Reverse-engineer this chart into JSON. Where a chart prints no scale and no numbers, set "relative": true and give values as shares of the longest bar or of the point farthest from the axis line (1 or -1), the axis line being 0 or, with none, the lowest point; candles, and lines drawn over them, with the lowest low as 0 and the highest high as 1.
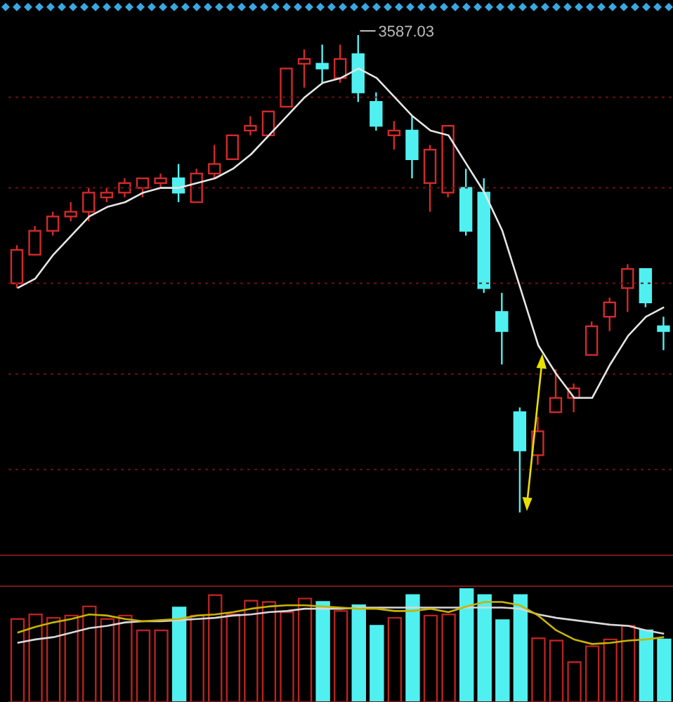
{
  "chart_data": [
    {
      "type": "candlestick",
      "relative": true,
      "ref_lines": [
        {
          "axis": "y",
          "value": 0.87,
          "color": "#6a1212",
          "line_style": "dashed"
        },
        {
          "axis": "y",
          "value": 0.68,
          "color": "#6a1212",
          "line_style": "dashed"
        },
        {
          "axis": "y",
          "value": 0.48,
          "color": "#6a1212",
          "line_style": "dashed"
        },
        {
          "axis": "y",
          "value": 0.29,
          "color": "#6a1212",
          "line_style": "dashed"
        },
        {
          "axis": "y",
          "value": 0.09,
          "color": "#6a1212",
          "line_style": "dashed"
        }
      ],
      "categories": [
        null,
        null,
        null,
        null,
        null,
        null,
        null,
        null,
        null,
        null,
        null,
        null,
        null,
        null,
        null,
        null,
        null,
        null,
        null,
        null,
        null,
        null,
        null,
        null,
        null,
        null,
        null,
        null,
        null,
        null,
        null,
        null,
        null,
        null,
        null,
        null,
        null
      ],
      "ohlc": [
        [
          0.48,
          0.56,
          0.47,
          0.55
        ],
        [
          0.54,
          0.6,
          0.54,
          0.59
        ],
        [
          0.59,
          0.63,
          0.58,
          0.62
        ],
        [
          0.62,
          0.65,
          0.61,
          0.63
        ],
        [
          0.63,
          0.68,
          0.61,
          0.67
        ],
        [
          0.66,
          0.68,
          0.65,
          0.67
        ],
        [
          0.67,
          0.7,
          0.66,
          0.69
        ],
        [
          0.68,
          0.7,
          0.66,
          0.7
        ],
        [
          0.69,
          0.71,
          0.68,
          0.7
        ],
        [
          0.7,
          0.73,
          0.65,
          0.67
        ],
        [
          0.65,
          0.72,
          0.65,
          0.71
        ],
        [
          0.71,
          0.77,
          0.7,
          0.73
        ],
        [
          0.74,
          0.79,
          0.74,
          0.79
        ],
        [
          0.8,
          0.83,
          0.79,
          0.81
        ],
        [
          0.79,
          0.84,
          0.79,
          0.84
        ],
        [
          0.85,
          0.93,
          0.85,
          0.93
        ],
        [
          0.94,
          0.97,
          0.89,
          0.95
        ],
        [
          0.94,
          0.98,
          0.9,
          0.93
        ],
        [
          0.91,
          0.98,
          0.9,
          0.95
        ],
        [
          0.96,
          1.0,
          0.86,
          0.88
        ],
        [
          0.86,
          0.88,
          0.8,
          0.81
        ],
        [
          0.79,
          0.82,
          0.76,
          0.8
        ],
        [
          0.8,
          0.83,
          0.7,
          0.74
        ],
        [
          0.69,
          0.77,
          0.63,
          0.76
        ],
        [
          0.67,
          0.81,
          0.66,
          0.81
        ],
        [
          0.68,
          0.72,
          0.58,
          0.59
        ],
        [
          0.67,
          0.7,
          0.46,
          0.47
        ],
        [
          0.42,
          0.46,
          0.31,
          0.38
        ],
        [
          0.21,
          0.22,
          0.0,
          0.13
        ],
        [
          0.12,
          0.2,
          0.1,
          0.17
        ],
        [
          0.21,
          0.3,
          0.21,
          0.24
        ],
        [
          0.24,
          0.27,
          0.21,
          0.26
        ],
        [
          0.33,
          0.4,
          0.33,
          0.39
        ],
        [
          0.41,
          0.45,
          0.38,
          0.44
        ],
        [
          0.47,
          0.52,
          0.42,
          0.51
        ],
        [
          0.51,
          0.51,
          0.43,
          0.44
        ],
        [
          0.39,
          0.41,
          0.34,
          0.38
        ]
      ],
      "colors": [
        "#d22a2a",
        "#d22a2a",
        "#d22a2a",
        "#d22a2a",
        "#d22a2a",
        "#d22a2a",
        "#d22a2a",
        "#d22a2a",
        "#d22a2a",
        "#50f0f0",
        "#d22a2a",
        "#d22a2a",
        "#d22a2a",
        "#d22a2a",
        "#d22a2a",
        "#d22a2a",
        "#d22a2a",
        "#50f0f0",
        "#d22a2a",
        "#50f0f0",
        "#50f0f0",
        "#d22a2a",
        "#50f0f0",
        "#d22a2a",
        "#d22a2a",
        "#50f0f0",
        "#50f0f0",
        "#50f0f0",
        "#50f0f0",
        "#d22a2a",
        "#d22a2a",
        "#d22a2a",
        "#d22a2a",
        "#d22a2a",
        "#d22a2a",
        "#50f0f0",
        "#50f0f0"
      ],
      "series": [
        {
          "type": "line",
          "color": "#e6e6e6",
          "values": [
            0.47,
            0.49,
            0.54,
            0.58,
            0.62,
            0.64,
            0.65,
            0.67,
            0.68,
            0.68,
            0.69,
            0.7,
            0.72,
            0.75,
            0.79,
            0.83,
            0.87,
            0.9,
            0.91,
            0.93,
            0.91,
            0.87,
            0.83,
            0.8,
            0.79,
            0.73,
            0.67,
            0.59,
            0.47,
            0.35,
            0.29,
            0.24,
            0.24,
            0.31,
            0.37,
            0.41,
            0.43
          ]
        }
      ],
      "annotations": [
        "3587.03"
      ]
    },
    {
      "type": "bar",
      "relative": true,
      "categories": [
        null,
        null,
        null,
        null,
        null,
        null,
        null,
        null,
        null,
        null,
        null,
        null,
        null,
        null,
        null,
        null,
        null,
        null,
        null,
        null,
        null,
        null,
        null,
        null,
        null,
        null,
        null,
        null,
        null,
        null,
        null,
        null,
        null,
        null,
        null,
        null,
        null
      ],
      "series": [
        {
          "type": "bar",
          "colors": [
            "#b82222",
            "#b82222",
            "#b82222",
            "#b82222",
            "#b82222",
            "#b82222",
            "#b82222",
            "#b82222",
            "#b82222",
            "#50f0f0",
            "#b82222",
            "#b82222",
            "#b82222",
            "#b82222",
            "#b82222",
            "#b82222",
            "#b82222",
            "#50f0f0",
            "#b82222",
            "#50f0f0",
            "#50f0f0",
            "#b82222",
            "#50f0f0",
            "#b82222",
            "#b82222",
            "#50f0f0",
            "#50f0f0",
            "#50f0f0",
            "#50f0f0",
            "#b82222",
            "#b82222",
            "#b82222",
            "#b82222",
            "#b82222",
            "#b82222",
            "#50f0f0",
            "#50f0f0"
          ],
          "values": [
            0.73,
            0.77,
            0.74,
            0.76,
            0.84,
            0.73,
            0.76,
            0.63,
            0.63,
            0.83,
            0.76,
            0.94,
            0.77,
            0.89,
            0.88,
            0.79,
            0.91,
            0.88,
            0.8,
            0.85,
            0.67,
            0.74,
            0.94,
            0.76,
            0.77,
            1.0,
            0.94,
            0.72,
            0.94,
            0.56,
            0.54,
            0.35,
            0.49,
            0.55,
            0.67,
            0.63,
            0.55
          ]
        },
        {
          "type": "line",
          "color": "#d8d8d8",
          "values": [
            0.52,
            0.55,
            0.57,
            0.61,
            0.65,
            0.67,
            0.7,
            0.71,
            0.71,
            0.72,
            0.73,
            0.74,
            0.76,
            0.77,
            0.79,
            0.8,
            0.82,
            0.82,
            0.82,
            0.83,
            0.83,
            0.83,
            0.83,
            0.83,
            0.83,
            0.83,
            0.83,
            0.83,
            0.82,
            0.77,
            0.74,
            0.72,
            0.7,
            0.68,
            0.67,
            0.63,
            0.6
          ]
        },
        {
          "type": "line",
          "color": "#c8b400",
          "values": [
            0.61,
            0.66,
            0.7,
            0.73,
            0.77,
            0.76,
            0.73,
            0.71,
            0.72,
            0.73,
            0.76,
            0.77,
            0.79,
            0.82,
            0.84,
            0.85,
            0.85,
            0.84,
            0.83,
            0.82,
            0.82,
            0.8,
            0.8,
            0.82,
            0.79,
            0.84,
            0.88,
            0.88,
            0.85,
            0.76,
            0.63,
            0.55,
            0.51,
            0.52,
            0.54,
            0.55,
            0.57
          ]
        }
      ]
    }
  ]
}
